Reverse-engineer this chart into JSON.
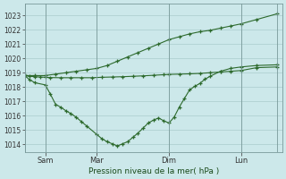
{
  "background_color": "#cce8ea",
  "grid_color": "#aacccc",
  "line_color": "#2d6a2d",
  "ylabel": "Pression niveau de la mer( hPa )",
  "ylim": [
    1013.5,
    1023.8
  ],
  "yticks": [
    1014,
    1015,
    1016,
    1017,
    1018,
    1019,
    1020,
    1021,
    1022,
    1023
  ],
  "xtick_labels": [
    "Sam",
    "Mar",
    "Dim",
    "Lun"
  ],
  "xtick_positions": [
    16,
    56,
    112,
    168
  ],
  "vline_x": [
    0,
    16,
    56,
    112,
    168,
    196
  ],
  "figsize": [
    3.2,
    2.0
  ],
  "dpi": 100,
  "series1_x": [
    0,
    4,
    8,
    12,
    16,
    20,
    28,
    36,
    44,
    52,
    60,
    68,
    76,
    84,
    92,
    100,
    108,
    112,
    120,
    128,
    136,
    144,
    152,
    160,
    168,
    180,
    196
  ],
  "series1_y": [
    1018.8,
    1018.75,
    1018.72,
    1018.7,
    1018.68,
    1018.66,
    1018.65,
    1018.65,
    1018.65,
    1018.65,
    1018.68,
    1018.7,
    1018.72,
    1018.75,
    1018.78,
    1018.82,
    1018.86,
    1018.88,
    1018.9,
    1018.92,
    1018.95,
    1019.0,
    1019.05,
    1019.1,
    1019.15,
    1019.35,
    1019.4
  ],
  "series2_x": [
    0,
    8,
    16,
    24,
    32,
    40,
    48,
    56,
    64,
    72,
    80,
    88,
    96,
    104,
    112,
    120,
    128,
    136,
    144,
    152,
    160,
    168,
    180,
    196
  ],
  "series2_y": [
    1018.8,
    1018.8,
    1018.8,
    1018.9,
    1019.0,
    1019.1,
    1019.2,
    1019.3,
    1019.5,
    1019.8,
    1020.1,
    1020.4,
    1020.7,
    1021.0,
    1021.3,
    1021.5,
    1021.7,
    1021.85,
    1021.95,
    1022.1,
    1022.25,
    1022.4,
    1022.7,
    1023.1
  ],
  "series3_x": [
    0,
    4,
    8,
    16,
    20,
    24,
    28,
    32,
    36,
    40,
    44,
    48,
    56,
    60,
    64,
    68,
    72,
    76,
    80,
    84,
    88,
    92,
    96,
    100,
    104,
    108,
    112,
    116,
    120,
    124,
    128,
    132,
    136,
    140,
    144,
    152,
    160,
    168,
    180,
    196
  ],
  "series3_y": [
    1018.8,
    1018.5,
    1018.3,
    1018.15,
    1017.5,
    1016.8,
    1016.6,
    1016.35,
    1016.15,
    1015.9,
    1015.6,
    1015.3,
    1014.7,
    1014.4,
    1014.2,
    1014.05,
    1013.9,
    1014.05,
    1014.2,
    1014.5,
    1014.8,
    1015.15,
    1015.5,
    1015.7,
    1015.85,
    1015.65,
    1015.5,
    1015.9,
    1016.6,
    1017.2,
    1017.8,
    1018.05,
    1018.25,
    1018.55,
    1018.75,
    1019.1,
    1019.3,
    1019.4,
    1019.5,
    1019.55
  ]
}
